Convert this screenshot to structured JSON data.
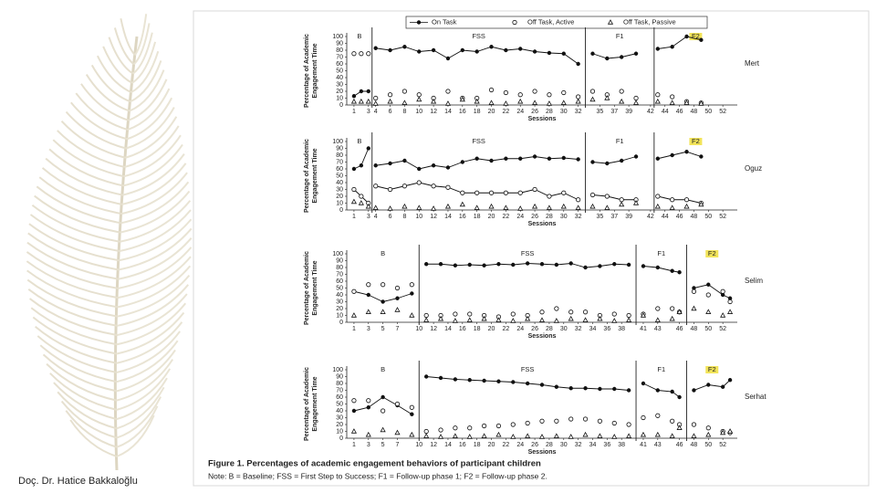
{
  "slide": {
    "author": "Doç. Dr. Hatice Bakkaloğlu"
  },
  "figure": {
    "caption": "Figure 1. Percentages of academic engagement behaviors of participant children",
    "note": "Note: B = Baseline; FSS = First Step to Success; F1 = Follow-up phase 1; F2 = Follow-up phase 2."
  },
  "chart_data": [
    {
      "type": "line",
      "participant": "Mert",
      "phases": [
        "B",
        "FSS",
        "F1",
        "F2"
      ],
      "phase_changes": [
        3.5,
        33,
        42.5
      ],
      "highlight_phase": 3,
      "highlight_color": "#f2e45a",
      "ylabel": [
        "Percentage of Academic",
        "Engagement Time"
      ],
      "xlabel": "Sessions",
      "ylim": [
        0,
        100
      ],
      "yticks": [
        0,
        10,
        20,
        30,
        40,
        50,
        60,
        70,
        80,
        90,
        100
      ],
      "xlim": [
        0,
        54
      ],
      "xticks": [
        1,
        3,
        4,
        6,
        8,
        10,
        12,
        14,
        16,
        18,
        20,
        22,
        24,
        26,
        28,
        30,
        32,
        35,
        37,
        39,
        42,
        44,
        46,
        48,
        50,
        52
      ],
      "x": [
        1,
        2,
        3,
        4,
        6,
        8,
        10,
        12,
        14,
        16,
        18,
        20,
        22,
        24,
        26,
        28,
        30,
        32,
        34,
        36,
        38,
        40,
        43,
        45,
        47,
        49
      ],
      "series": [
        {
          "name": "On Task",
          "color": "#111111",
          "marker": "filled",
          "line": true,
          "values": [
            13,
            20,
            20,
            83,
            80,
            85,
            78,
            80,
            68,
            80,
            78,
            85,
            80,
            82,
            78,
            76,
            75,
            60,
            75,
            68,
            70,
            75,
            82,
            85,
            100,
            95
          ]
        },
        {
          "name": "Off Task, Active",
          "color": "#111111",
          "marker": "open",
          "line": false,
          "values": [
            75,
            75,
            75,
            10,
            15,
            20,
            15,
            10,
            20,
            10,
            10,
            22,
            18,
            15,
            20,
            15,
            18,
            12,
            20,
            15,
            20,
            10,
            15,
            12,
            5,
            3
          ]
        },
        {
          "name": "Off Task, Passive",
          "color": "#111111",
          "marker": "triangle",
          "line": false,
          "values": [
            5,
            5,
            5,
            2,
            5,
            3,
            8,
            5,
            2,
            8,
            5,
            3,
            2,
            5,
            3,
            2,
            3,
            5,
            8,
            10,
            5,
            3,
            5,
            3,
            3,
            2
          ]
        }
      ]
    },
    {
      "type": "line",
      "participant": "Oguz",
      "phases": [
        "B",
        "FSS",
        "F1",
        "F2"
      ],
      "phase_changes": [
        3.5,
        33,
        42.5
      ],
      "highlight_phase": 3,
      "highlight_color": "#f2e45a",
      "ylabel": [
        "Percentage of Academic",
        "Engagement Time"
      ],
      "xlabel": "Sessions",
      "ylim": [
        0,
        100
      ],
      "yticks": [
        0,
        10,
        20,
        30,
        40,
        50,
        60,
        70,
        80,
        90,
        100
      ],
      "xlim": [
        0,
        54
      ],
      "xticks": [
        1,
        3,
        4,
        6,
        8,
        10,
        12,
        14,
        16,
        18,
        20,
        22,
        24,
        26,
        28,
        30,
        32,
        35,
        37,
        39,
        42,
        44,
        46,
        48,
        50,
        52
      ],
      "x": [
        1,
        2,
        3,
        4,
        6,
        8,
        10,
        12,
        14,
        16,
        18,
        20,
        22,
        24,
        26,
        28,
        30,
        32,
        34,
        36,
        38,
        40,
        43,
        45,
        47,
        49
      ],
      "series": [
        {
          "color": "#111111",
          "marker": "filled",
          "line": true,
          "values": [
            60,
            65,
            90,
            65,
            68,
            72,
            60,
            65,
            62,
            70,
            75,
            72,
            75,
            75,
            78,
            75,
            76,
            74,
            70,
            68,
            72,
            78,
            75,
            80,
            85,
            78
          ]
        },
        {
          "color": "#111111",
          "marker": "open",
          "line": true,
          "values": [
            30,
            20,
            10,
            35,
            30,
            35,
            40,
            35,
            33,
            25,
            25,
            25,
            25,
            25,
            30,
            20,
            25,
            15,
            22,
            20,
            15,
            15,
            20,
            15,
            15,
            10
          ]
        },
        {
          "color": "#111111",
          "marker": "triangle",
          "line": false,
          "values": [
            12,
            10,
            5,
            3,
            2,
            5,
            3,
            2,
            5,
            8,
            3,
            5,
            3,
            2,
            5,
            3,
            5,
            3,
            5,
            3,
            8,
            10,
            5,
            3,
            5,
            8
          ]
        }
      ]
    },
    {
      "type": "line",
      "participant": "Selim",
      "phases": [
        "B",
        "FSS",
        "F1",
        "F2"
      ],
      "phase_changes": [
        10,
        40,
        47
      ],
      "highlight_phase": 3,
      "highlight_color": "#f2e45a",
      "ylabel": [
        "Percentage of Academic",
        "Engagement Time"
      ],
      "xlabel": "Sessions",
      "ylim": [
        0,
        100
      ],
      "yticks": [
        0,
        10,
        20,
        30,
        40,
        50,
        60,
        70,
        80,
        90,
        100
      ],
      "xlim": [
        0,
        54
      ],
      "xticks": [
        1,
        3,
        5,
        7,
        10,
        12,
        14,
        16,
        18,
        20,
        22,
        24,
        26,
        28,
        30,
        32,
        34,
        36,
        38,
        41,
        43,
        46,
        48,
        50,
        52
      ],
      "x": [
        1,
        3,
        5,
        7,
        9,
        11,
        13,
        15,
        17,
        19,
        21,
        23,
        25,
        27,
        29,
        31,
        33,
        35,
        37,
        39,
        41,
        43,
        45,
        46,
        48,
        50,
        52,
        53
      ],
      "series": [
        {
          "color": "#111111",
          "marker": "filled",
          "line": true,
          "values": [
            45,
            40,
            30,
            35,
            42,
            85,
            85,
            83,
            84,
            83,
            85,
            84,
            86,
            85,
            84,
            86,
            80,
            82,
            85,
            84,
            82,
            80,
            75,
            73,
            50,
            55,
            40,
            35
          ]
        },
        {
          "color": "#111111",
          "marker": "open",
          "line": false,
          "values": [
            45,
            55,
            55,
            50,
            55,
            10,
            10,
            12,
            12,
            10,
            8,
            12,
            10,
            15,
            20,
            15,
            15,
            10,
            12,
            10,
            12,
            20,
            20,
            15,
            45,
            40,
            45,
            30
          ]
        },
        {
          "color": "#111111",
          "marker": "triangle",
          "line": false,
          "values": [
            10,
            15,
            15,
            18,
            10,
            3,
            5,
            2,
            3,
            5,
            3,
            2,
            5,
            3,
            2,
            5,
            3,
            5,
            2,
            3,
            10,
            3,
            5,
            15,
            20,
            15,
            10,
            15
          ]
        }
      ]
    },
    {
      "type": "line",
      "participant": "Serhat",
      "phases": [
        "B",
        "FSS",
        "F1",
        "F2"
      ],
      "phase_changes": [
        10,
        40,
        47
      ],
      "highlight_phase": 3,
      "highlight_color": "#f2e45a",
      "ylabel": [
        "Percentage of Academic",
        "Engagement Time"
      ],
      "xlabel": "Sessions",
      "ylim": [
        0,
        100
      ],
      "yticks": [
        0,
        10,
        20,
        30,
        40,
        50,
        60,
        70,
        80,
        90,
        100
      ],
      "xlim": [
        0,
        54
      ],
      "xticks": [
        1,
        3,
        5,
        7,
        10,
        12,
        14,
        16,
        18,
        20,
        22,
        24,
        26,
        28,
        30,
        32,
        34,
        36,
        38,
        41,
        43,
        46,
        48,
        50,
        52
      ],
      "x": [
        1,
        3,
        5,
        7,
        9,
        11,
        13,
        15,
        17,
        19,
        21,
        23,
        25,
        27,
        29,
        31,
        33,
        35,
        37,
        39,
        41,
        43,
        45,
        46,
        48,
        50,
        52,
        53
      ],
      "series": [
        {
          "color": "#111111",
          "marker": "filled",
          "line": true,
          "values": [
            40,
            45,
            60,
            48,
            35,
            90,
            88,
            86,
            85,
            84,
            83,
            82,
            80,
            78,
            75,
            73,
            73,
            72,
            72,
            70,
            80,
            70,
            68,
            60,
            70,
            78,
            75,
            85
          ]
        },
        {
          "color": "#111111",
          "marker": "open",
          "line": false,
          "values": [
            55,
            55,
            40,
            50,
            45,
            10,
            12,
            15,
            15,
            18,
            18,
            20,
            22,
            25,
            25,
            28,
            28,
            25,
            22,
            20,
            30,
            33,
            25,
            20,
            20,
            15,
            10,
            8
          ]
        },
        {
          "color": "#111111",
          "marker": "triangle",
          "line": false,
          "values": [
            10,
            5,
            12,
            8,
            5,
            3,
            2,
            3,
            2,
            3,
            5,
            2,
            3,
            2,
            3,
            2,
            5,
            3,
            2,
            3,
            5,
            5,
            3,
            15,
            3,
            5,
            8,
            10
          ]
        }
      ]
    }
  ]
}
